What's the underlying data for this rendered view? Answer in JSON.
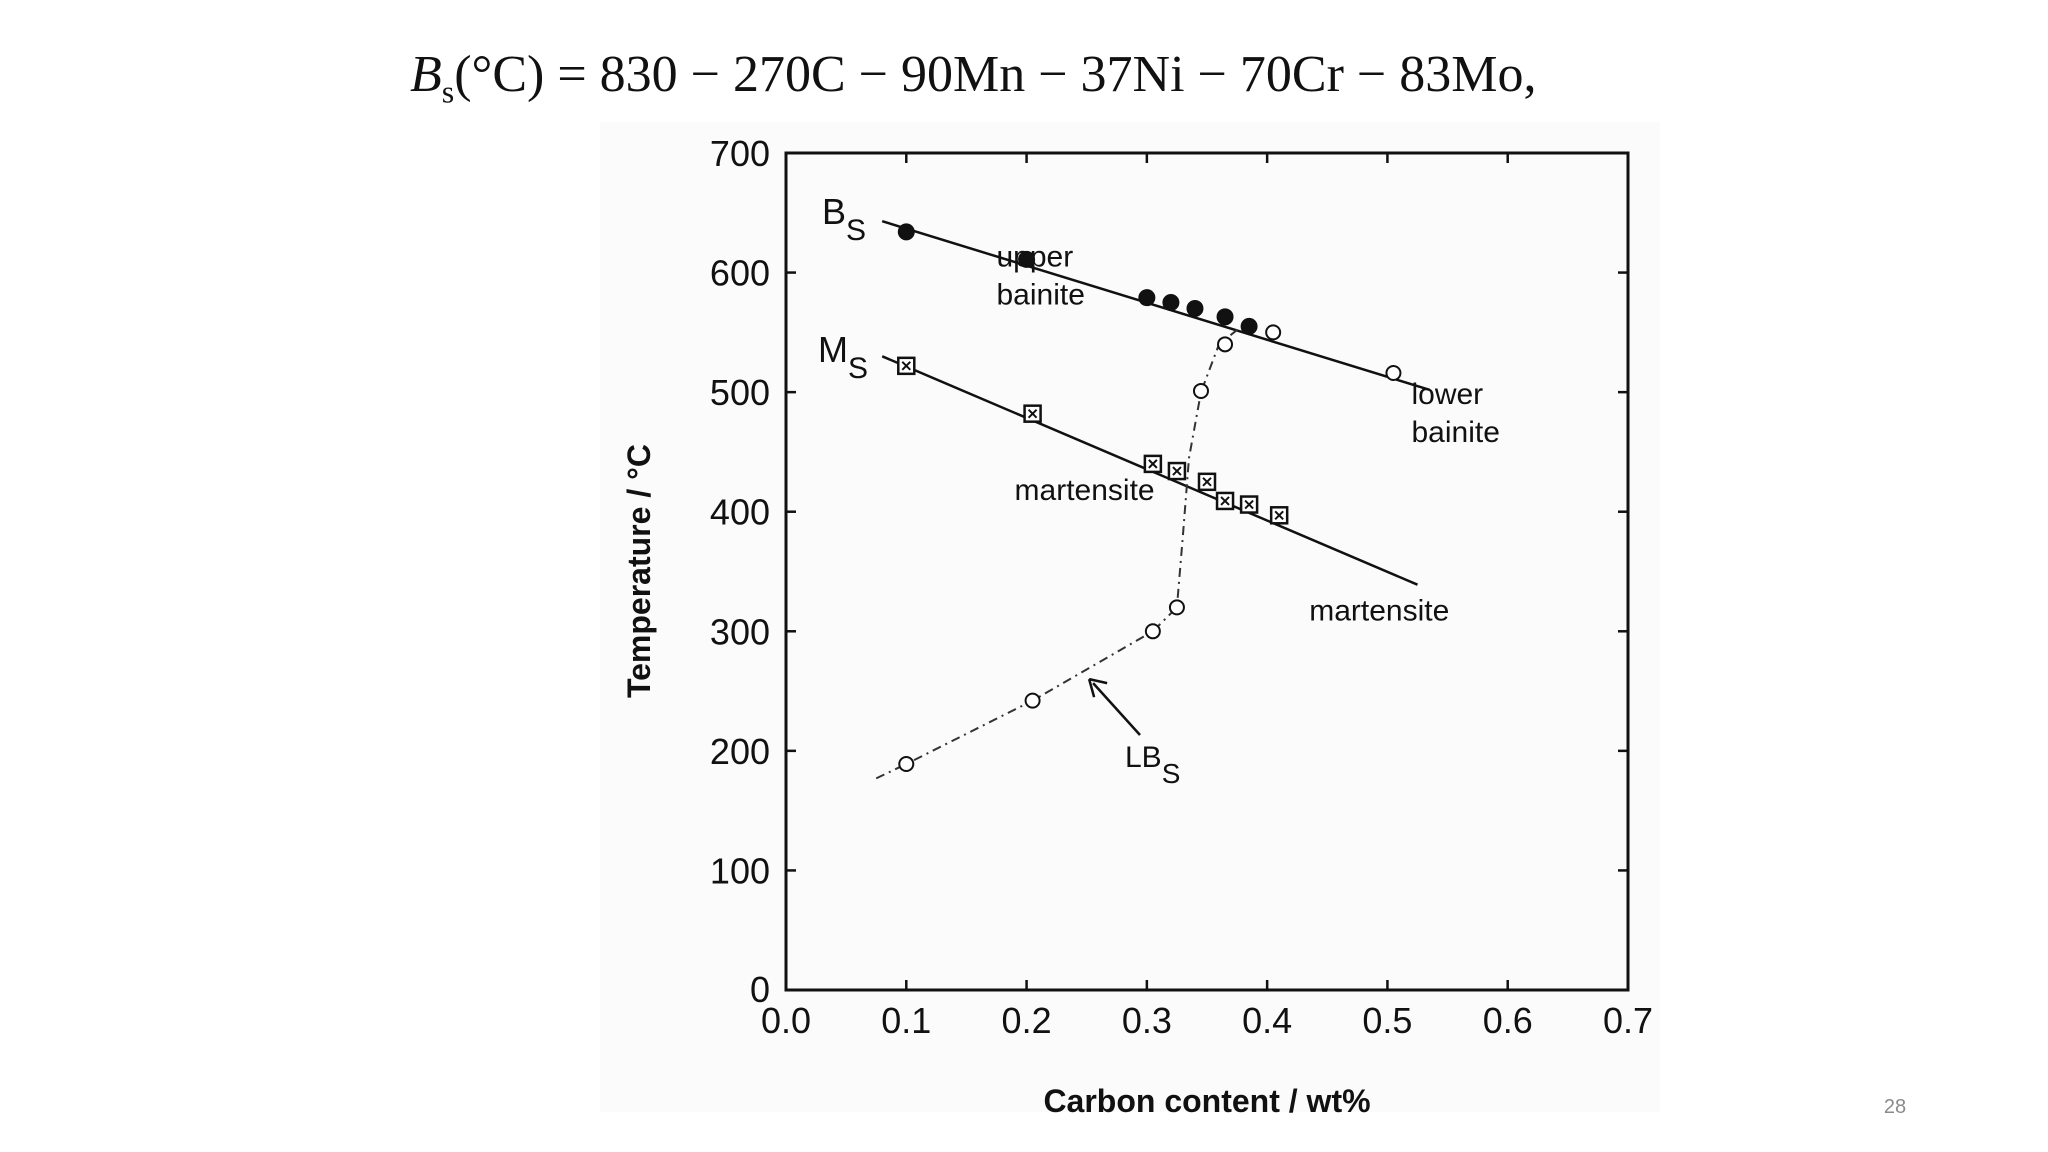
{
  "slide": {
    "formula": {
      "symbol": "B",
      "subscript": "s",
      "rest": "(°C) = 830 − 270C − 90Mn − 37Ni − 70Cr − 83Mo,"
    },
    "page_number": "28"
  },
  "chart_data": {
    "type": "line",
    "title": "",
    "xlabel": "Carbon content / wt%",
    "ylabel": "Temperature / °C",
    "xlim": [
      0.0,
      0.7
    ],
    "ylim": [
      0,
      700
    ],
    "xticks": [
      "0.0",
      "0.1",
      "0.2",
      "0.3",
      "0.4",
      "0.5",
      "0.6",
      "0.7"
    ],
    "yticks": [
      "0",
      "100",
      "200",
      "300",
      "400",
      "500",
      "600",
      "700"
    ],
    "grid": false,
    "series": [
      {
        "name": "BS",
        "label_main": "B",
        "label_sub": "S",
        "line_style": "solid",
        "fit_line": {
          "x": [
            0.08,
            0.535
          ],
          "y": [
            643,
            502
          ]
        },
        "points_filled": {
          "x": [
            0.1,
            0.2,
            0.3,
            0.32,
            0.34,
            0.365,
            0.385
          ],
          "y": [
            634,
            611,
            579,
            575,
            570,
            563,
            555
          ]
        },
        "points_open": {
          "x": [
            0.405,
            0.505
          ],
          "y": [
            550,
            516
          ]
        }
      },
      {
        "name": "MS",
        "label_main": "M",
        "label_sub": "S",
        "line_style": "solid",
        "fit_line": {
          "x": [
            0.08,
            0.525
          ],
          "y": [
            530,
            339
          ]
        },
        "points_square": {
          "x": [
            0.1,
            0.205,
            0.305,
            0.325,
            0.35,
            0.365,
            0.385,
            0.41
          ],
          "y": [
            522,
            482,
            440,
            434,
            425,
            409,
            406,
            397
          ]
        }
      },
      {
        "name": "LBS",
        "label_main": "LB",
        "label_sub": "S",
        "line_style": "dash-dot",
        "curve": {
          "x": [
            0.075,
            0.1,
            0.205,
            0.305,
            0.325,
            0.33,
            0.335,
            0.345,
            0.36,
            0.385
          ],
          "y": [
            177,
            189,
            242,
            300,
            320,
            380,
            445,
            500,
            540,
            560
          ]
        },
        "points_open": {
          "x": [
            0.1,
            0.205,
            0.305,
            0.325,
            0.345,
            0.365
          ],
          "y": [
            189,
            242,
            300,
            320,
            501,
            540
          ]
        }
      }
    ],
    "annotations": [
      {
        "text_lines": [
          "upper",
          "bainite"
        ],
        "x": 0.175,
        "y": 605
      },
      {
        "text_lines": [
          "lower",
          "bainite"
        ],
        "x": 0.52,
        "y": 490
      },
      {
        "text_lines": [
          "martensite"
        ],
        "x": 0.19,
        "y": 410
      },
      {
        "text_lines": [
          "martensite"
        ],
        "x": 0.435,
        "y": 309
      }
    ]
  }
}
